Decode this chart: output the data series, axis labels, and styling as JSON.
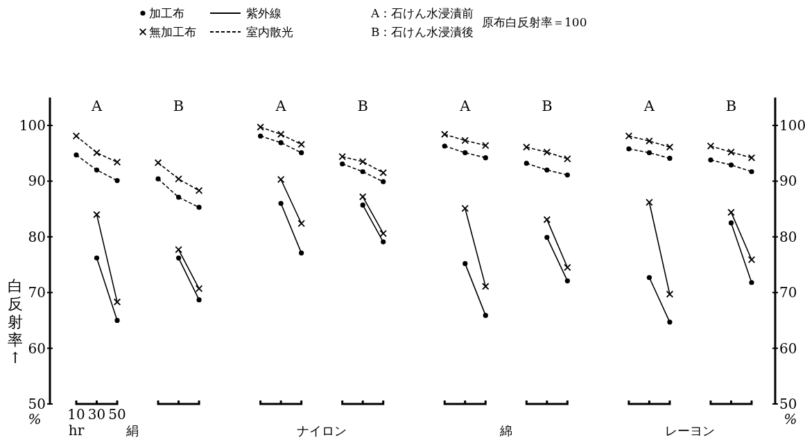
{
  "chart_data": {
    "type": "line",
    "ylabel": "白反射率↑",
    "categories": [
      "10",
      "30",
      "50",
      null,
      null,
      null,
      null,
      null,
      null,
      null,
      null,
      null,
      null,
      null,
      null,
      null,
      null,
      null,
      null,
      null,
      null,
      null,
      null,
      null,
      null,
      null,
      null,
      null,
      null,
      null,
      null,
      null,
      null,
      null
    ],
    "ylim": [
      50,
      105
    ],
    "yticks": [
      50,
      60,
      70,
      80,
      90,
      100
    ],
    "y2lim": [
      50,
      105
    ],
    "y2ticks": [
      50,
      60,
      70,
      80,
      90,
      100
    ],
    "series": [
      {
        "color": "#000000",
        "marker": "cross",
        "line_style": "dashed",
        "values": [
          98.1,
          95.1,
          93.4,
          null,
          93.3,
          90.4,
          88.3,
          null,
          null,
          99.7,
          98.4,
          96.6,
          null,
          94.4,
          93.5,
          91.5,
          null,
          null,
          98.4,
          97.3,
          96.4,
          null,
          96.1,
          95.2,
          94.0,
          null,
          null,
          98.1,
          97.2,
          96.1,
          null,
          96.3,
          95.2,
          94.2
        ]
      },
      {
        "color": "#000000",
        "marker": "circle",
        "line_style": "dashed",
        "values": [
          94.7,
          92.0,
          90.1,
          null,
          90.4,
          87.1,
          85.3,
          null,
          null,
          98.1,
          96.9,
          95.1,
          null,
          93.1,
          91.7,
          89.9,
          null,
          null,
          96.3,
          95.1,
          94.2,
          null,
          93.2,
          92.0,
          91.1,
          null,
          null,
          95.8,
          95.1,
          94.1,
          null,
          93.8,
          92.9,
          91.7
        ]
      },
      {
        "color": "#000000",
        "marker": "cross",
        "line_style": "solid",
        "values": [
          null,
          84.0,
          68.3,
          null,
          null,
          77.7,
          70.7,
          null,
          null,
          null,
          90.3,
          82.4,
          null,
          null,
          87.2,
          80.6,
          null,
          null,
          null,
          85.1,
          71.1,
          null,
          null,
          83.1,
          74.5,
          null,
          null,
          null,
          86.2,
          69.7,
          null,
          null,
          84.4,
          75.9
        ]
      },
      {
        "color": "#000000",
        "marker": "circle",
        "line_style": "solid",
        "values": [
          null,
          76.2,
          65.0,
          null,
          null,
          76.2,
          68.7,
          null,
          null,
          null,
          86.0,
          77.1,
          null,
          null,
          85.7,
          79.1,
          null,
          null,
          null,
          75.2,
          65.9,
          null,
          null,
          79.9,
          72.1,
          null,
          null,
          null,
          72.7,
          64.7,
          null,
          null,
          82.5,
          71.8
        ]
      }
    ],
    "annotations": [
      "A",
      "B",
      "A",
      "B",
      "A",
      "B",
      "A",
      "B",
      "絹",
      "ナイロン",
      "綿",
      "レーヨン",
      "hr",
      "%",
      "%",
      "加工布",
      "無加工布",
      "紫外線",
      "室内散光",
      "A：石けん水浸漬前",
      "B：石けん水浸漬後",
      "原布白反射率＝100"
    ]
  }
}
